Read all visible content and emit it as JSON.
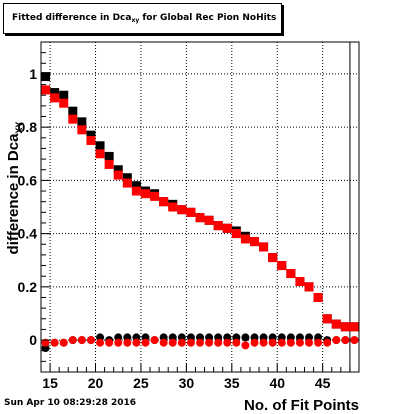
{
  "title": {
    "prefix": "Fitted difference in Dca",
    "subscript": "xy",
    "suffix": " for Global Rec Pion NoHits"
  },
  "footer": {
    "timestamp": "Sun Apr 10 08:29:28 2016"
  },
  "chart_data": {
    "type": "scatter",
    "xlabel": "No. of Fit Points",
    "ylabel_main": "difference in Dca",
    "ylabel_sub": "XY",
    "xlim": [
      14,
      49
    ],
    "ylim": [
      -0.12,
      1.12
    ],
    "xticks": [
      15,
      20,
      25,
      30,
      35,
      40,
      45
    ],
    "yticks": [
      0,
      0.2,
      0.4,
      0.6,
      0.8,
      1
    ],
    "ytick_labels": [
      "0",
      "0.2",
      "0.4",
      "0.6",
      "0.8",
      "1"
    ],
    "grid": true,
    "series": [
      {
        "marker": "square",
        "color": "#000000",
        "x": [
          14.5,
          15.5,
          16.5,
          17.5,
          18.5,
          19.5,
          20.5,
          21.5,
          22.5,
          23.5,
          24.5,
          25.5,
          26.5,
          27.5,
          28.5,
          29.5,
          30.5,
          31.5,
          32.5,
          33.5,
          34.5,
          35.5,
          36.5,
          37.5,
          38.5,
          39.5,
          40.5,
          41.5,
          42.5,
          43.5,
          44.5,
          45.5,
          46.5,
          47.5,
          48.5
        ],
        "y": [
          0.99,
          0.93,
          0.92,
          0.86,
          0.82,
          0.77,
          0.73,
          0.69,
          0.64,
          0.61,
          0.58,
          0.56,
          0.55,
          0.52,
          0.51,
          0.49,
          0.48,
          0.46,
          0.45,
          0.43,
          0.42,
          0.41,
          0.39,
          0.37,
          0.35,
          0.31,
          0.28,
          0.25,
          0.22,
          0.2,
          0.16,
          0.08,
          0.06,
          0.05,
          0.05
        ]
      },
      {
        "marker": "square",
        "color": "#ff0000",
        "x": [
          14.5,
          15.5,
          16.5,
          17.5,
          18.5,
          19.5,
          20.5,
          21.5,
          22.5,
          23.5,
          24.5,
          25.5,
          26.5,
          27.5,
          28.5,
          29.5,
          30.5,
          31.5,
          32.5,
          33.5,
          34.5,
          35.5,
          36.5,
          37.5,
          38.5,
          39.5,
          40.5,
          41.5,
          42.5,
          43.5,
          44.5,
          45.5,
          46.5,
          47.5,
          48.5
        ],
        "y": [
          0.94,
          0.91,
          0.89,
          0.83,
          0.79,
          0.75,
          0.7,
          0.66,
          0.62,
          0.59,
          0.56,
          0.55,
          0.54,
          0.52,
          0.5,
          0.49,
          0.48,
          0.46,
          0.45,
          0.43,
          0.42,
          0.4,
          0.38,
          0.37,
          0.35,
          0.31,
          0.28,
          0.25,
          0.22,
          0.2,
          0.16,
          0.08,
          0.06,
          0.05,
          0.05
        ]
      },
      {
        "marker": "circle",
        "color": "#000000",
        "x": [
          14.5,
          15.5,
          16.5,
          17.5,
          18.5,
          19.5,
          20.5,
          21.5,
          22.5,
          23.5,
          24.5,
          25.5,
          26.5,
          27.5,
          28.5,
          29.5,
          30.5,
          31.5,
          32.5,
          33.5,
          34.5,
          35.5,
          36.5,
          37.5,
          38.5,
          39.5,
          40.5,
          41.5,
          42.5,
          43.5,
          44.5,
          45.5,
          46.5,
          47.5,
          48.5
        ],
        "y": [
          -0.03,
          -0.01,
          -0.01,
          0.0,
          0.0,
          0.0,
          0.01,
          0.0,
          0.01,
          0.01,
          0.01,
          0.01,
          0.0,
          0.01,
          0.01,
          0.01,
          0.01,
          0.01,
          0.01,
          0.01,
          0.01,
          0.01,
          0.01,
          0.01,
          0.01,
          0.01,
          0.01,
          0.01,
          0.01,
          0.01,
          0.01,
          0.0,
          0.0,
          0.0,
          0.0
        ]
      },
      {
        "marker": "circle",
        "color": "#ff0000",
        "x": [
          14.5,
          15.5,
          16.5,
          17.5,
          18.5,
          19.5,
          20.5,
          21.5,
          22.5,
          23.5,
          24.5,
          25.5,
          26.5,
          27.5,
          28.5,
          29.5,
          30.5,
          31.5,
          32.5,
          33.5,
          34.5,
          35.5,
          36.5,
          37.5,
          38.5,
          39.5,
          40.5,
          41.5,
          42.5,
          43.5,
          44.5,
          45.5,
          46.5,
          47.5,
          48.5
        ],
        "y": [
          -0.01,
          -0.01,
          -0.01,
          0.0,
          0.0,
          0.0,
          -0.01,
          -0.01,
          -0.01,
          -0.01,
          -0.01,
          -0.01,
          0.0,
          -0.01,
          -0.01,
          -0.01,
          -0.01,
          -0.01,
          -0.01,
          -0.01,
          -0.01,
          -0.01,
          -0.02,
          -0.01,
          -0.01,
          -0.01,
          -0.01,
          -0.01,
          -0.01,
          -0.01,
          -0.01,
          -0.01,
          0.0,
          0.0,
          0.0
        ]
      }
    ],
    "vertical_marker_x": 48
  }
}
